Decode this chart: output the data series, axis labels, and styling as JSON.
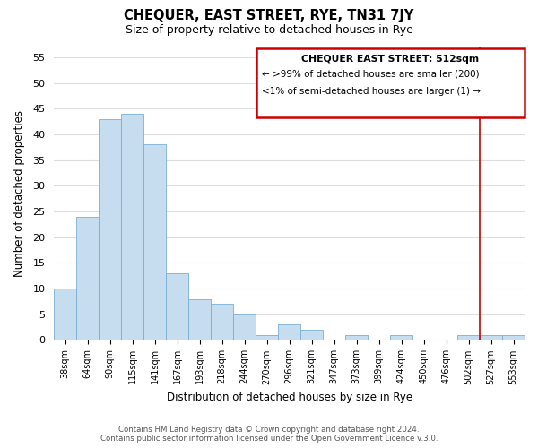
{
  "title": "CHEQUER, EAST STREET, RYE, TN31 7JY",
  "subtitle": "Size of property relative to detached houses in Rye",
  "xlabel": "Distribution of detached houses by size in Rye",
  "ylabel": "Number of detached properties",
  "footer_line1": "Contains HM Land Registry data © Crown copyright and database right 2024.",
  "footer_line2": "Contains public sector information licensed under the Open Government Licence v.3.0.",
  "bar_labels": [
    "38sqm",
    "64sqm",
    "90sqm",
    "115sqm",
    "141sqm",
    "167sqm",
    "193sqm",
    "218sqm",
    "244sqm",
    "270sqm",
    "296sqm",
    "321sqm",
    "347sqm",
    "373sqm",
    "399sqm",
    "424sqm",
    "450sqm",
    "476sqm",
    "502sqm",
    "527sqm",
    "553sqm"
  ],
  "bar_values": [
    10,
    24,
    43,
    44,
    38,
    13,
    8,
    7,
    5,
    1,
    3,
    2,
    0,
    1,
    0,
    1,
    0,
    0,
    1,
    1,
    1
  ],
  "bar_color": "#c6ddf0",
  "bar_edge_color": "#7bafd4",
  "ylim": [
    0,
    57
  ],
  "yticks": [
    0,
    5,
    10,
    15,
    20,
    25,
    30,
    35,
    40,
    45,
    50,
    55
  ],
  "vline_x_index": 18.5,
  "vline_color": "#cc0000",
  "legend_title": "CHEQUER EAST STREET: 512sqm",
  "legend_line1": "← >99% of detached houses are smaller (200)",
  "legend_line2": "<1% of semi-detached houses are larger (1) →",
  "legend_box_color": "#cc0000",
  "background_color": "#ffffff",
  "plot_bg_color": "#ffffff",
  "grid_color": "#dddddd"
}
